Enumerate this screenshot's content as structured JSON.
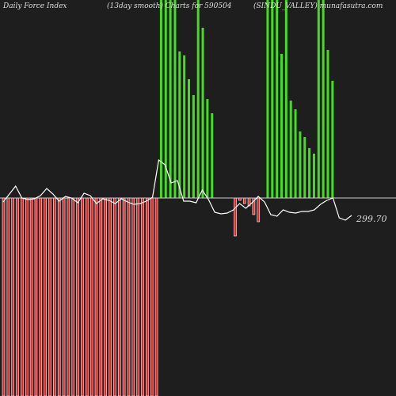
{
  "header": {
    "left": "Daily Force  Index",
    "middle": "(13day smooth) Charts for 590504",
    "right": "(SINDU_VALLEY) munafasutra.com"
  },
  "colors": {
    "background": "#1e1e1e",
    "positive_bar": "#44dd22",
    "negative_bar": "#ee2222",
    "bar_outline": "#ffffff",
    "zero_line": "#cccccc",
    "smooth_line": "#ffffff"
  },
  "chart_data": {
    "type": "bar",
    "title": "Daily Force  Index",
    "subtitle": "(13day smooth) Charts for 590504",
    "ylim": [
      -250,
      250
    ],
    "zero_label": "",
    "last_value_label": "299.70",
    "series": [
      {
        "type": "bar",
        "values": [
          -250,
          -250,
          -250,
          -250,
          -250,
          -250,
          -250,
          -250,
          -250,
          -250,
          -250,
          -250,
          -250,
          -250,
          -250,
          -250,
          -250,
          -250,
          -250,
          -250,
          -250,
          -250,
          -250,
          -250,
          -250,
          -250,
          -250,
          -250,
          -250,
          -250,
          -250,
          -250,
          -250,
          -250,
          250,
          250,
          250,
          250,
          185,
          180,
          150,
          130,
          250,
          215,
          125,
          107,
          0,
          0,
          0,
          0,
          -48,
          -3,
          -7,
          -10,
          -21,
          -30,
          0,
          250,
          250,
          250,
          182,
          250,
          123,
          112,
          84,
          77,
          63,
          56,
          250,
          250,
          187,
          148
        ]
      },
      {
        "type": "line",
        "values": [
          -5,
          5,
          15,
          0,
          -2,
          -1,
          3,
          12,
          5,
          -4,
          2,
          0,
          -6,
          6,
          3,
          -7,
          -1,
          -3,
          -7,
          -1,
          -5,
          -8,
          -7,
          -4,
          1,
          48,
          42,
          19,
          22,
          -4,
          -4,
          -6,
          10,
          -2,
          -18,
          -20,
          -19,
          -15,
          -7,
          -13,
          -6,
          2,
          -5,
          -21,
          -23,
          -15,
          -18,
          -19,
          -17,
          -17,
          -15,
          -8,
          -3,
          0,
          -25,
          -28,
          -22
        ]
      }
    ]
  }
}
